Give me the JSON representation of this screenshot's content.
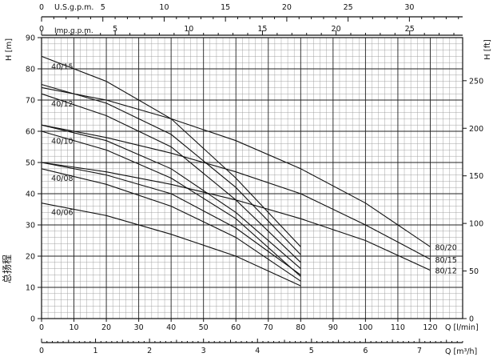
{
  "chart_data": {
    "type": "line",
    "title": "",
    "xlabel": "Q [l/min]",
    "xlim": [
      0,
      130
    ],
    "ylim": [
      0,
      90
    ],
    "grid": true,
    "y_left_label": "H [m]",
    "y_left_ticks": [
      0,
      10,
      20,
      30,
      40,
      50,
      60,
      70,
      80,
      90
    ],
    "y_left_chinese_label": "总扬程",
    "y_right_label": "H [ft]",
    "y_right_ticks": [
      0,
      50,
      100,
      150,
      200,
      250
    ],
    "x_ticks": [
      0,
      10,
      20,
      30,
      40,
      50,
      60,
      70,
      80,
      90,
      100,
      110,
      120
    ],
    "secondary_axes": {
      "m3h": {
        "label": "Q [m³/h]",
        "ticks": [
          0,
          1,
          2,
          3,
          4,
          5,
          6,
          7
        ]
      },
      "usgpm": {
        "label": "U.S.g.p.m.",
        "ticks": [
          0,
          5,
          10,
          15,
          20,
          25,
          30
        ]
      },
      "impgpm": {
        "label": "Imp.g.p.m.",
        "ticks": [
          0,
          5,
          10,
          15,
          20,
          25
        ]
      }
    },
    "series": [
      {
        "name": "40/15",
        "x": [
          0,
          20,
          40,
          60,
          80
        ],
        "y": [
          84,
          76,
          64,
          45,
          23
        ]
      },
      {
        "name": "",
        "x": [
          0,
          20,
          40,
          60,
          80
        ],
        "y": [
          75,
          69,
          59,
          42,
          20.5
        ]
      },
      {
        "name": "40/12",
        "x": [
          0,
          20,
          40,
          60,
          80
        ],
        "y": [
          72,
          65,
          55,
          38,
          18
        ]
      },
      {
        "name": "",
        "x": [
          0,
          20,
          40,
          60,
          80
        ],
        "y": [
          62,
          57,
          48,
          34,
          16
        ]
      },
      {
        "name": "40/10",
        "x": [
          0,
          20,
          40,
          60,
          80
        ],
        "y": [
          60,
          54,
          45,
          32,
          13.5
        ]
      },
      {
        "name": "",
        "x": [
          0,
          20,
          40,
          60,
          80
        ],
        "y": [
          50,
          46,
          40,
          29,
          14
        ]
      },
      {
        "name": "40/08",
        "x": [
          0,
          20,
          40,
          60,
          80
        ],
        "y": [
          48,
          43,
          36,
          26,
          12
        ]
      },
      {
        "name": "40/06",
        "x": [
          0,
          20,
          40,
          60,
          80
        ],
        "y": [
          37,
          33,
          27,
          20,
          10.5
        ]
      },
      {
        "name": "80/20",
        "x": [
          0,
          20,
          40,
          60,
          80,
          100,
          120
        ],
        "y": [
          74,
          70,
          64,
          57,
          48,
          37,
          23
        ]
      },
      {
        "name": "80/15",
        "x": [
          0,
          20,
          40,
          60,
          80,
          100,
          120
        ],
        "y": [
          62,
          58,
          53,
          47,
          40,
          30,
          19
        ]
      },
      {
        "name": "80/12",
        "x": [
          0,
          20,
          40,
          60,
          80,
          100,
          120
        ],
        "y": [
          50,
          47,
          43,
          38,
          32,
          25,
          15.5
        ]
      }
    ]
  }
}
